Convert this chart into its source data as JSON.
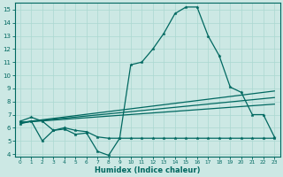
{
  "xlabel": "Humidex (Indice chaleur)",
  "bg_color": "#cce8e4",
  "line_color": "#006860",
  "grid_color": "#aad8d0",
  "xlim": [
    -0.5,
    23.5
  ],
  "ylim": [
    3.8,
    15.5
  ],
  "xticks": [
    0,
    1,
    2,
    3,
    4,
    5,
    6,
    7,
    8,
    9,
    10,
    11,
    12,
    13,
    14,
    15,
    16,
    17,
    18,
    19,
    20,
    21,
    22,
    23
  ],
  "yticks": [
    4,
    5,
    6,
    7,
    8,
    9,
    10,
    11,
    12,
    13,
    14,
    15
  ],
  "series_main": {
    "x": [
      0,
      1,
      2,
      3,
      4,
      5,
      6,
      7,
      8,
      9,
      10,
      11,
      12,
      13,
      14,
      15,
      16,
      17,
      18,
      19,
      20,
      21,
      22,
      23
    ],
    "y": [
      6.5,
      6.8,
      6.5,
      5.8,
      5.9,
      5.5,
      5.6,
      4.2,
      3.9,
      5.2,
      10.8,
      11.0,
      12.0,
      13.2,
      14.7,
      15.2,
      15.2,
      13.0,
      11.5,
      9.1,
      8.7,
      7.0,
      7.0,
      5.3
    ]
  },
  "series_flat": {
    "x": [
      0,
      1,
      2,
      3,
      4,
      5,
      6,
      7,
      8,
      9,
      10,
      11,
      12,
      13,
      14,
      15,
      16,
      17,
      18,
      19,
      20,
      21,
      22,
      23
    ],
    "y": [
      6.3,
      6.5,
      5.0,
      5.8,
      6.0,
      5.8,
      5.7,
      5.3,
      5.2,
      5.2,
      5.2,
      5.2,
      5.2,
      5.2,
      5.2,
      5.2,
      5.2,
      5.2,
      5.2,
      5.2,
      5.2,
      5.2,
      5.2,
      5.2
    ]
  },
  "trend_lines": [
    {
      "x": [
        0,
        23
      ],
      "y": [
        6.4,
        8.8
      ]
    },
    {
      "x": [
        0,
        23
      ],
      "y": [
        6.4,
        8.3
      ]
    },
    {
      "x": [
        0,
        23
      ],
      "y": [
        6.4,
        7.8
      ]
    }
  ]
}
